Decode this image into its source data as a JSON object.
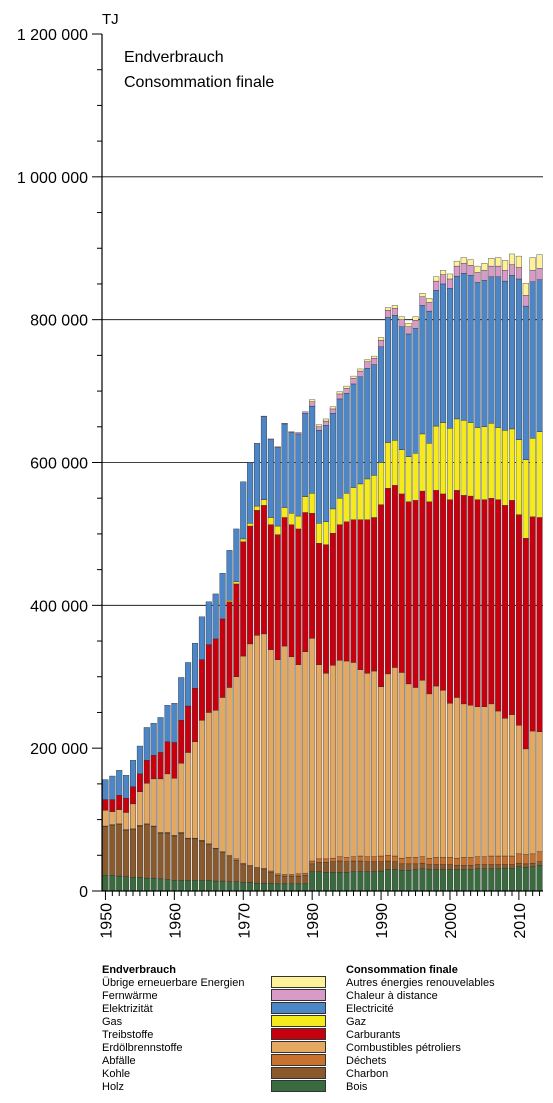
{
  "chart_data": {
    "type": "bar",
    "stacked": true,
    "unit_label": "TJ",
    "title_de": "Endverbrauch",
    "title_fr": "Consommation finale",
    "ylim": [
      0,
      1200000
    ],
    "yticks": [
      0,
      200000,
      400000,
      600000,
      800000,
      1000000,
      1200000
    ],
    "ytick_labels": [
      "0",
      "200 000",
      "400 000",
      "600 000",
      "800 000",
      "1 000 000",
      "1 200 000"
    ],
    "xticks": [
      "1950",
      "1960",
      "1970",
      "1980",
      "1990",
      "2000",
      "2010"
    ],
    "gridlines_at": [
      400000,
      600000,
      800000,
      1000000
    ],
    "categories": [
      1950,
      1951,
      1952,
      1953,
      1954,
      1955,
      1956,
      1957,
      1958,
      1959,
      1960,
      1961,
      1962,
      1963,
      1964,
      1965,
      1966,
      1967,
      1968,
      1969,
      1970,
      1971,
      1972,
      1973,
      1974,
      1975,
      1976,
      1977,
      1978,
      1979,
      1980,
      1981,
      1982,
      1983,
      1984,
      1985,
      1986,
      1987,
      1988,
      1989,
      1990,
      1991,
      1992,
      1993,
      1994,
      1995,
      1996,
      1997,
      1998,
      1999,
      2000,
      2001,
      2002,
      2003,
      2004,
      2005,
      2006,
      2007,
      2008,
      2009,
      2010,
      2011,
      2012,
      2013
    ],
    "series": [
      {
        "name_de": "Holz",
        "name_fr": "Bois",
        "color": "#3a6b3e",
        "values": [
          22000,
          22000,
          21000,
          20000,
          19000,
          19000,
          18000,
          18000,
          17000,
          16000,
          15000,
          15000,
          15000,
          15000,
          15000,
          15000,
          14000,
          14000,
          13000,
          13000,
          12000,
          12000,
          11000,
          11000,
          11000,
          10000,
          10000,
          10000,
          10000,
          10000,
          27000,
          27000,
          26000,
          26000,
          26000,
          26000,
          27000,
          27000,
          27000,
          27000,
          28000,
          30000,
          30000,
          29000,
          29000,
          30000,
          31000,
          30000,
          30000,
          30000,
          30000,
          30000,
          30000,
          30000,
          31000,
          31000,
          31000,
          31000,
          32000,
          32000,
          34000,
          33000,
          34000,
          36000
        ]
      },
      {
        "name_de": "Kohle",
        "name_fr": "Charbon",
        "color": "#8a5a2c",
        "values": [
          68000,
          70000,
          72000,
          65000,
          67000,
          72000,
          75000,
          72000,
          64000,
          65000,
          62000,
          66000,
          58000,
          58000,
          55000,
          50000,
          45000,
          40000,
          35000,
          30000,
          25000,
          22000,
          20000,
          19000,
          15000,
          12000,
          11000,
          11000,
          11000,
          12000,
          11000,
          13000,
          14000,
          15000,
          16000,
          15000,
          15000,
          15000,
          14000,
          14000,
          13000,
          12000,
          11000,
          9000,
          9000,
          8000,
          8000,
          7000,
          7000,
          7000,
          7000,
          6000,
          6000,
          6000,
          6000,
          6000,
          6000,
          6000,
          5000,
          5000,
          5000,
          5000,
          5000,
          5000
        ]
      },
      {
        "name_de": "Abfälle",
        "name_fr": "Déchets",
        "color": "#c8722e",
        "values": [
          1000,
          1000,
          1000,
          1000,
          1000,
          1000,
          1000,
          1000,
          1000,
          1000,
          1000,
          1000,
          1000,
          1000,
          1000,
          1000,
          1000,
          1000,
          2000,
          2000,
          2000,
          2000,
          2000,
          2000,
          2000,
          2000,
          2000,
          2000,
          3000,
          3000,
          4000,
          5000,
          5000,
          5000,
          6000,
          6000,
          6000,
          7000,
          7000,
          7000,
          8000,
          8000,
          8000,
          8000,
          9000,
          9000,
          9000,
          9000,
          10000,
          10000,
          10000,
          10000,
          11000,
          11000,
          11000,
          11000,
          12000,
          12000,
          12000,
          12000,
          13000,
          13000,
          13000,
          14000
        ]
      },
      {
        "name_de": "Erdölbrennstoffe",
        "name_fr": "Combustibles pétroliers",
        "color": "#e3a861",
        "values": [
          22000,
          18000,
          20000,
          24000,
          35000,
          47000,
          57000,
          66000,
          75000,
          82000,
          80000,
          97000,
          120000,
          135000,
          168000,
          184000,
          193000,
          216000,
          235000,
          255000,
          290000,
          310000,
          325000,
          328000,
          310000,
          300000,
          320000,
          305000,
          293000,
          310000,
          312000,
          272000,
          260000,
          270000,
          275000,
          275000,
          272000,
          261000,
          257000,
          260000,
          237000,
          254000,
          264000,
          260000,
          243000,
          238000,
          247000,
          230000,
          240000,
          234000,
          216000,
          225000,
          215000,
          213000,
          210000,
          210000,
          213000,
          203000,
          193000,
          198000,
          180000,
          148000,
          172000,
          168000
        ]
      },
      {
        "name_de": "Treibstoffe",
        "name_fr": "Carburants",
        "color": "#c70010",
        "values": [
          15000,
          17000,
          20000,
          20000,
          24000,
          25000,
          32000,
          33000,
          37000,
          45000,
          50000,
          60000,
          65000,
          75000,
          85000,
          95000,
          100000,
          110000,
          120000,
          130000,
          160000,
          165000,
          175000,
          180000,
          175000,
          175000,
          180000,
          185000,
          190000,
          195000,
          175000,
          170000,
          180000,
          185000,
          190000,
          195000,
          200000,
          210000,
          215000,
          215000,
          255000,
          260000,
          255000,
          250000,
          255000,
          262000,
          265000,
          269000,
          274000,
          275000,
          285000,
          290000,
          292000,
          293000,
          290000,
          290000,
          288000,
          296000,
          298000,
          300000,
          295000,
          295000,
          300000,
          300000
        ]
      },
      {
        "name_de": "Gas",
        "name_fr": "Gaz",
        "color": "#f4ea1c",
        "values": [
          0,
          0,
          0,
          0,
          0,
          0,
          0,
          0,
          0,
          0,
          0,
          0,
          0,
          0,
          0,
          0,
          0,
          0,
          2000,
          3000,
          4000,
          4000,
          6000,
          8000,
          10000,
          12000,
          14000,
          16000,
          18000,
          22000,
          28000,
          28000,
          32000,
          34000,
          37000,
          40000,
          45000,
          50000,
          57000,
          59000,
          59000,
          64000,
          63000,
          62000,
          63000,
          66000,
          80000,
          82000,
          90000,
          100000,
          100000,
          100000,
          105000,
          103000,
          101000,
          102000,
          105000,
          101000,
          105000,
          100000,
          105000,
          110000,
          110000,
          120000
        ]
      },
      {
        "name_de": "Elektrizität",
        "name_fr": "Electricité",
        "color": "#4d86c6",
        "values": [
          28000,
          33000,
          35000,
          32000,
          37000,
          39000,
          46000,
          45000,
          49000,
          51000,
          55000,
          60000,
          61000,
          63000,
          60000,
          60000,
          63000,
          64000,
          70000,
          74000,
          80000,
          85000,
          88000,
          116000,
          109000,
          110000,
          117000,
          113000,
          115000,
          117000,
          122000,
          130000,
          135000,
          134000,
          139000,
          140000,
          145000,
          150000,
          155000,
          155000,
          162000,
          175000,
          175000,
          172000,
          172000,
          175000,
          180000,
          185000,
          190000,
          194000,
          196000,
          200000,
          206000,
          206000,
          203000,
          205000,
          205000,
          211000,
          209000,
          215000,
          225000,
          215000,
          219000,
          213000
        ]
      },
      {
        "name_de": "Fernwärme",
        "name_fr": "Chaleur à distance",
        "color": "#d89bc8",
        "values": [
          0,
          0,
          0,
          0,
          0,
          0,
          0,
          0,
          0,
          0,
          0,
          0,
          0,
          0,
          0,
          0,
          0,
          0,
          0,
          0,
          0,
          0,
          0,
          1000,
          1000,
          1000,
          1000,
          1000,
          2000,
          2000,
          6000,
          5000,
          6000,
          6000,
          7000,
          7000,
          8000,
          8000,
          9000,
          9000,
          9000,
          10000,
          10000,
          10000,
          10000,
          11000,
          12000,
          12000,
          13000,
          13000,
          13000,
          14000,
          14000,
          14000,
          14000,
          14000,
          15000,
          15000,
          15000,
          15000,
          16000,
          15000,
          16000,
          16000
        ]
      },
      {
        "name_de": "Übrige erneuerbare Energien",
        "name_fr": "Autres énergies renouvelables",
        "color": "#fdf29a",
        "values": [
          0,
          0,
          0,
          0,
          0,
          0,
          0,
          0,
          0,
          0,
          0,
          0,
          0,
          0,
          0,
          0,
          0,
          0,
          0,
          0,
          0,
          0,
          0,
          0,
          0,
          0,
          0,
          0,
          0,
          0,
          3000,
          3000,
          3000,
          3000,
          3000,
          3000,
          3000,
          3000,
          3000,
          3000,
          4000,
          4000,
          4000,
          4000,
          5000,
          5000,
          5000,
          6000,
          6000,
          6000,
          7000,
          7000,
          8000,
          8000,
          9000,
          10000,
          11000,
          12000,
          14000,
          15000,
          16000,
          17000,
          18000,
          19000
        ]
      }
    ]
  },
  "legend": {
    "heading_de": "Endverbrauch",
    "heading_fr": "Consommation finale"
  }
}
